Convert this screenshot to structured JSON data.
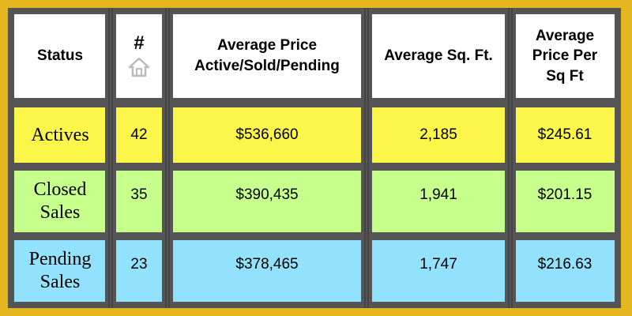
{
  "table": {
    "headers": {
      "status": "Status",
      "count": "#",
      "count_icon": "home-icon",
      "avg_price_line1": "Average Price",
      "avg_price_line2": "Active/Sold/Pending",
      "avg_sqft": "Average Sq. Ft.",
      "ppsf_line1": "Average",
      "ppsf_line2": "Price Per",
      "ppsf_line3": "Sq Ft"
    },
    "rows": [
      {
        "status_line1": "Actives",
        "status_line2": "",
        "count": "42",
        "avg_price": "$536,660",
        "avg_sqft": "2,185",
        "price_per_sqft": "$245.61"
      },
      {
        "status_line1": "Closed",
        "status_line2": "Sales",
        "count": "35",
        "avg_price": "$390,435",
        "avg_sqft": "1,941",
        "price_per_sqft": "$201.15"
      },
      {
        "status_line1": "Pending",
        "status_line2": "Sales",
        "count": "23",
        "avg_price": "$378,465",
        "avg_sqft": "1,747",
        "price_per_sqft": "$216.63"
      }
    ]
  },
  "colors": {
    "background": "#e3b51f",
    "frame": "#555555",
    "header_bg": "#ffffff",
    "row_active": "#fcf54a",
    "row_closed": "#c7ff8d",
    "row_pending": "#92e1fd"
  }
}
